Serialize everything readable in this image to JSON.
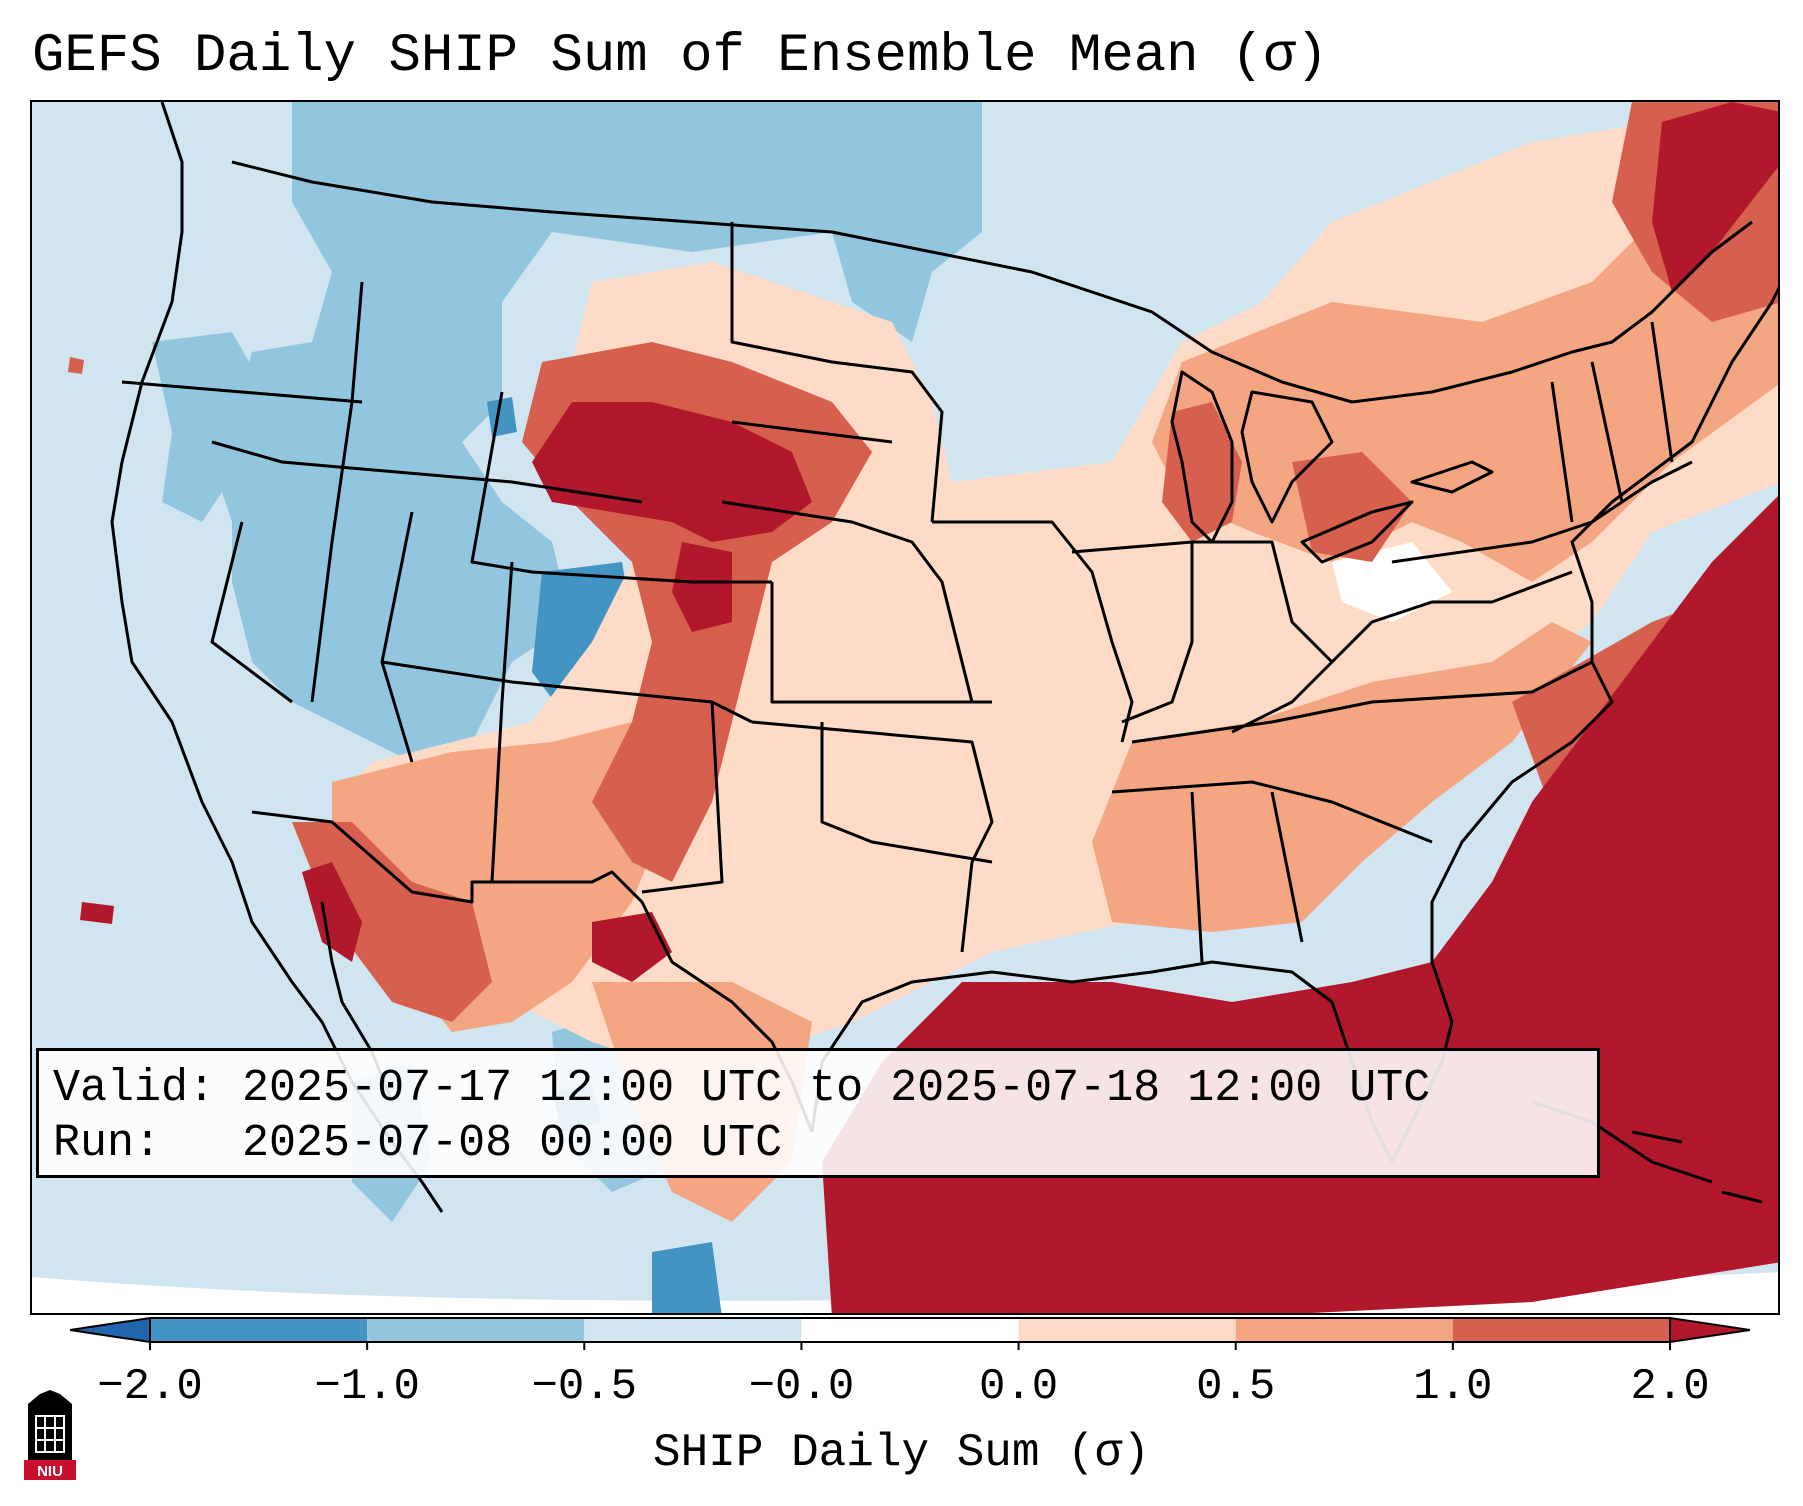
{
  "title": "GEFS Daily SHIP Sum of Ensemble Mean (σ)",
  "info": {
    "valid_label": "Valid:",
    "valid_value": "2025-07-17 12:00 UTC to 2025-07-18 12:00 UTC",
    "run_label": "Run:",
    "run_value": "2025-07-08 00:00 UTC"
  },
  "colorbar": {
    "label": "SHIP Daily Sum (σ)",
    "ticks": [
      "−2.0",
      "−1.0",
      "−0.5",
      "−0.0",
      "0.0",
      "0.5",
      "1.0",
      "2.0"
    ],
    "colors": [
      "#4393c3",
      "#92c5de",
      "#d1e5f0",
      "#ffffff",
      "#fddbc7",
      "#f4a582",
      "#d6604d"
    ],
    "under_color": "#2166ac",
    "over_color": "#b2182b"
  },
  "logo": {
    "text": "NIU"
  },
  "map": {
    "land_bg": "#d1e5f0",
    "regions": [
      {
        "name": "northwest-blue",
        "class": "-1.0 to -0.5"
      },
      {
        "name": "utah-dark-blue",
        "class": "-2.0 to -1.0"
      },
      {
        "name": "wyoming-red",
        "class": "> 2.0"
      },
      {
        "name": "gulf-atlantic-red",
        "class": "> 2.0"
      },
      {
        "name": "great-lakes-orange",
        "class": "0.5 to 1.0"
      },
      {
        "name": "central-peach",
        "class": "0.0 to 0.5"
      }
    ]
  }
}
